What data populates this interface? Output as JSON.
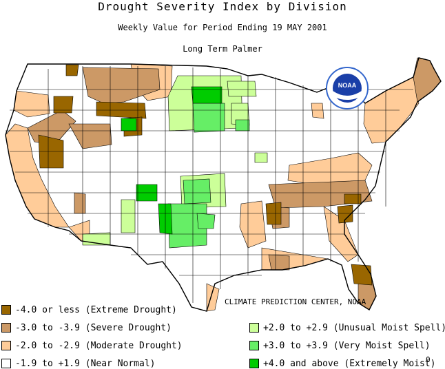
{
  "titles": {
    "main": "Drought Severity Index by Division",
    "period": "Weekly Value for Period Ending 19 MAY 2001",
    "index": "Long Term Palmer"
  },
  "logo_text": "NOAA",
  "credit": "CLIMATE PREDICTION CENTER, NOAA",
  "page_number": "0",
  "legend": {
    "left": [
      {
        "label": "-4.0 or less (Extreme Drought)",
        "color": "#996600"
      },
      {
        "label": "-3.0 to -3.9 (Severe Drought)",
        "color": "#cc9966"
      },
      {
        "label": "-2.0 to -2.9 (Moderate Drought)",
        "color": "#ffcc99"
      },
      {
        "label": "-1.9 to +1.9 (Near Normal)",
        "color": "#ffffff"
      }
    ],
    "right": [
      {
        "label": "+2.0 to +2.9 (Unusual Moist Spell)",
        "color": "#ccff99"
      },
      {
        "label": "+3.0 to +3.9 (Very Moist Spell)",
        "color": "#66ee66"
      },
      {
        "label": "+4.0 and above (Extremely Moist)",
        "color": "#00cc00"
      }
    ]
  }
}
